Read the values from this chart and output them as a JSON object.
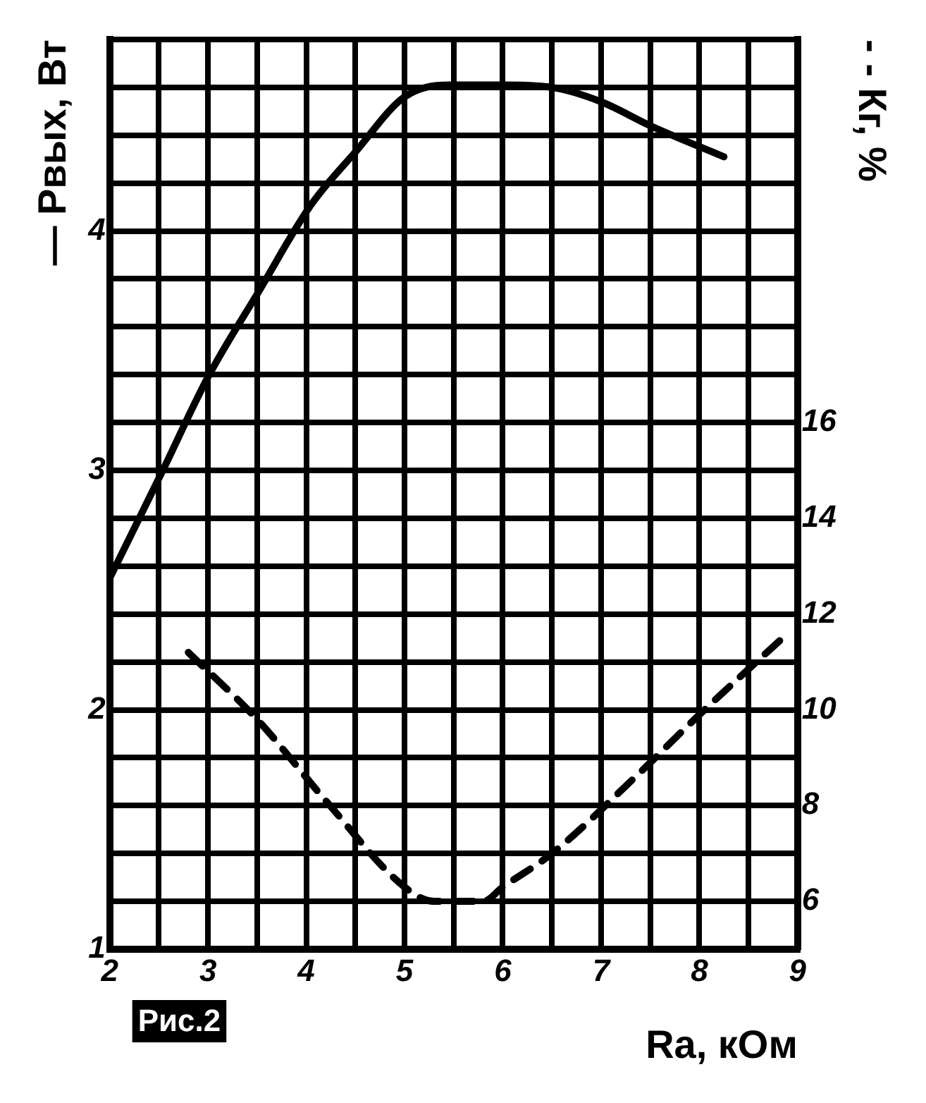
{
  "chart_data": {
    "type": "line",
    "xlabel": "Ra, кОм",
    "ylabel": "— Рвых, Вт",
    "y2label": "- - Кг, %",
    "annotations": [
      "Рис.2"
    ],
    "xlim": [
      2,
      9
    ],
    "xticks": [
      2,
      {
        "value": 2.5,
        "label": null
      },
      3,
      {
        "value": 3.5,
        "label": null
      },
      4,
      {
        "value": 4.5,
        "label": null
      },
      5,
      {
        "value": 5.5,
        "label": null
      },
      6,
      {
        "value": 6.5,
        "label": null
      },
      7,
      {
        "value": 7.5,
        "label": null
      },
      8,
      {
        "value": 8.5,
        "label": null
      },
      9
    ],
    "ylim": [
      1,
      4.8
    ],
    "yticks": [
      1,
      {
        "value": 1.2,
        "label": null
      },
      {
        "value": 1.4,
        "label": null
      },
      {
        "value": 1.6,
        "label": null
      },
      {
        "value": 1.8,
        "label": null
      },
      2,
      {
        "value": 2.2,
        "label": null
      },
      {
        "value": 2.4,
        "label": null
      },
      {
        "value": 2.6,
        "label": null
      },
      {
        "value": 2.8,
        "label": null
      },
      3,
      {
        "value": 3.2,
        "label": null
      },
      {
        "value": 3.4,
        "label": null
      },
      {
        "value": 3.6,
        "label": null
      },
      {
        "value": 3.8,
        "label": null
      },
      4,
      {
        "value": 4.2,
        "label": null
      },
      {
        "value": 4.4,
        "label": null
      },
      {
        "value": 4.6,
        "label": null
      },
      {
        "value": 4.8,
        "label": null
      }
    ],
    "y2lim": [
      5,
      24
    ],
    "y2ticks": [
      6,
      8,
      10,
      12,
      14,
      16
    ],
    "grid": true,
    "marker": "none",
    "series": [
      {
        "color": "#000000",
        "line_style": "solid",
        "x": [
          2,
          2.54,
          3,
          3.52,
          4.05,
          4.5,
          5,
          5.45,
          6,
          6.5,
          7,
          7.5,
          8.25
        ],
        "values": [
          2.55,
          3.0,
          3.39,
          3.75,
          4.11,
          4.33,
          4.56,
          4.61,
          4.61,
          4.6,
          4.54,
          4.44,
          4.31
        ]
      },
      {
        "color": "#000000",
        "line_style": "dashed",
        "axis": "y2",
        "x": [
          2.8,
          3.5,
          4.2,
          5.0,
          5.3,
          5.8,
          6.0,
          6.5,
          7.4,
          8.0,
          8.9
        ],
        "values": [
          11.2,
          9.8,
          8.1,
          6.3,
          6.0,
          6.0,
          6.3,
          7.0,
          8.7,
          9.9,
          11.6
        ]
      }
    ]
  }
}
